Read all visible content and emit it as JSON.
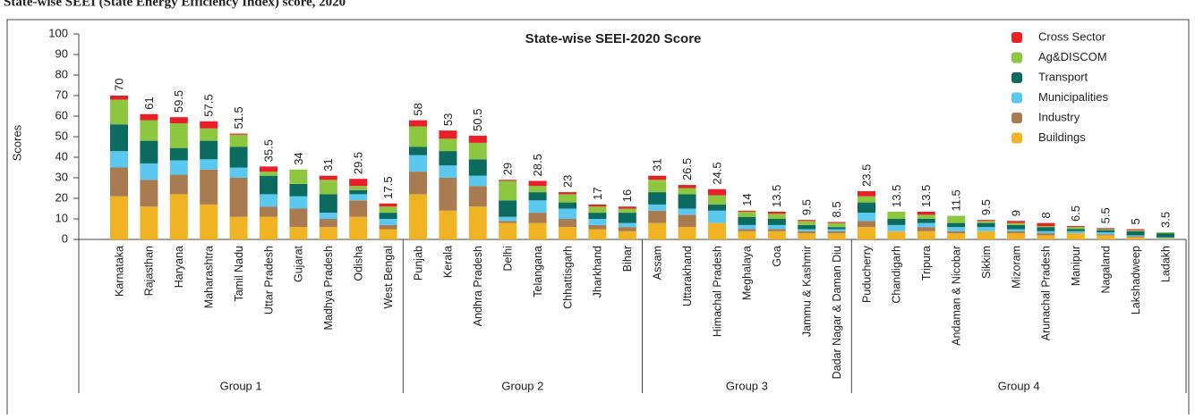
{
  "chart_data": {
    "type": "stacked_bar",
    "heading": "State-wise SEEI (State Energy Efficiency Index) score, 2020",
    "title": "State-wise SEEI-2020 Score",
    "ylabel": "Scores",
    "ylim": [
      0,
      100
    ],
    "yticks": [
      0,
      10,
      20,
      30,
      40,
      50,
      60,
      70,
      80,
      90,
      100
    ],
    "groups": [
      {
        "name": "Group 1",
        "categories": [
          "Karnataka",
          "Rajasthan",
          "Haryana",
          "Maharashtra",
          "Tamil Nadu",
          "Uttar Pradesh",
          "Gujarat",
          "Madhya Pradesh",
          "Odisha",
          "West Bengal"
        ]
      },
      {
        "name": "Group 2",
        "categories": [
          "Punjab",
          "Kerala",
          "Andhra Pradesh",
          "Delhi",
          "Telangana",
          "Chhattisgarh",
          "Jharkhand",
          "Bihar"
        ]
      },
      {
        "name": "Group 3",
        "categories": [
          "Assam",
          "Uttarakhand",
          "Himachal Pradesh",
          "Meghalaya",
          "Goa",
          "Jammu & Kashmir",
          "Dadar Nagar & Daman Diu"
        ]
      },
      {
        "name": "Group 4",
        "categories": [
          "Puducherry",
          "Chandigarh",
          "Tripura",
          "Andaman & Nicobar",
          "Sikkim",
          "Mizoram",
          "Arunachal Pradesh",
          "Manipur",
          "Nagaland",
          "Lakshadweep",
          "Ladakh"
        ]
      }
    ],
    "totals": [
      70,
      61,
      59.5,
      57.5,
      51.5,
      35.5,
      34,
      31,
      29.5,
      17.5,
      58,
      53,
      50.5,
      29,
      28.5,
      23,
      17,
      16,
      31,
      26.5,
      24.5,
      14,
      13.5,
      9.5,
      8.5,
      23.5,
      13.5,
      13.5,
      11.5,
      9.5,
      9,
      8,
      6.5,
      5.5,
      5,
      3.5
    ],
    "series": [
      {
        "name": "Cross Sector",
        "color": "#e8202a",
        "values": [
          2,
          3,
          3,
          3.5,
          0.5,
          2.5,
          0,
          2,
          3.5,
          1.5,
          3,
          4,
          3.5,
          0.5,
          2.5,
          1,
          1,
          1,
          2,
          1.5,
          3,
          0.5,
          1,
          0.5,
          0.5,
          2.5,
          0,
          1.5,
          0,
          0.5,
          1,
          1.5,
          0.5,
          0.5,
          0.5,
          0
        ]
      },
      {
        "name": "Ag&DISCOM",
        "color": "#8dc63f",
        "values": [
          12,
          10,
          12,
          6,
          6,
          2,
          7,
          7,
          2,
          3,
          10,
          6,
          8,
          9.5,
          3,
          4,
          3,
          2,
          6,
          3,
          4.5,
          2.5,
          2.5,
          2,
          2,
          3,
          3.5,
          2,
          3.5,
          1,
          1,
          0.5,
          1,
          0.5,
          0.5,
          0.5
        ]
      },
      {
        "name": "Transport",
        "color": "#0b6b5e",
        "values": [
          13,
          11,
          6,
          9,
          10,
          9,
          6,
          9,
          2,
          3,
          4,
          7,
          8,
          8,
          4,
          3,
          3,
          5,
          6,
          7,
          3,
          4,
          3,
          2,
          1,
          5,
          3,
          2,
          2,
          2,
          2,
          2,
          1,
          1,
          2,
          2
        ]
      },
      {
        "name": "Municipalities",
        "color": "#5bc8f0",
        "values": [
          8,
          8,
          7,
          5,
          5,
          6,
          6,
          3,
          3,
          3,
          8,
          6,
          5,
          2,
          6,
          5,
          3,
          2,
          3,
          3,
          6,
          2,
          2,
          1,
          1,
          4,
          3,
          2,
          2,
          2,
          1,
          1,
          1,
          1,
          0.5,
          0.5
        ]
      },
      {
        "name": "Industry",
        "color": "#a87b50",
        "values": [
          14,
          13,
          9.5,
          17,
          19,
          5,
          9,
          4,
          8,
          2,
          11,
          16,
          10,
          1,
          5,
          4,
          2,
          2,
          6,
          6,
          0,
          1,
          1,
          1,
          1,
          3,
          0,
          2,
          1,
          0,
          1,
          1,
          0,
          0.5,
          0.5,
          0
        ]
      },
      {
        "name": "Buildings",
        "color": "#f0b323",
        "values": [
          21,
          16,
          22,
          17,
          11,
          11,
          6,
          6,
          11,
          5,
          22,
          14,
          16,
          8,
          8,
          6,
          5,
          4,
          8,
          6,
          8,
          4,
          4,
          3,
          3,
          6,
          4,
          4,
          3,
          4,
          3,
          2,
          3,
          2,
          1,
          0.5
        ]
      }
    ],
    "legend": "top-right"
  }
}
